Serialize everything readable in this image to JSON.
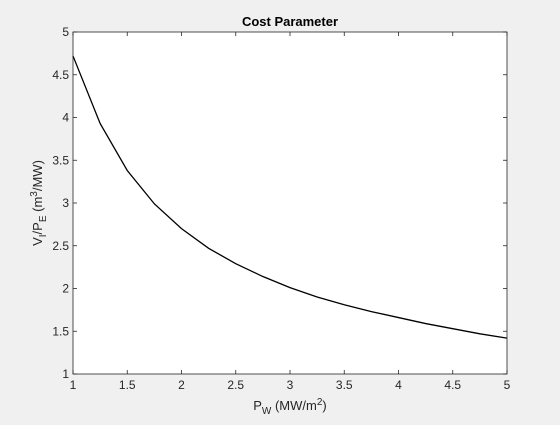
{
  "chart_data": {
    "type": "line",
    "title": "Cost Parameter",
    "xlabel": {
      "base": "P",
      "sub": "W",
      "rest": " (MW/m",
      "sup": "2",
      "end": ")"
    },
    "ylabel": {
      "base": "V",
      "sub1": "I",
      "mid": "/P",
      "sub2": "E",
      "rest": " (m",
      "sup": "3",
      "end": "/MW)"
    },
    "xlim": [
      1,
      5
    ],
    "ylim": [
      1,
      5
    ],
    "xticks": [
      1,
      1.5,
      2,
      2.5,
      3,
      3.5,
      4,
      4.5,
      5
    ],
    "yticks": [
      1,
      1.5,
      2,
      2.5,
      3,
      3.5,
      4,
      4.5,
      5
    ],
    "xtick_labels": [
      "1",
      "1.5",
      "2",
      "2.5",
      "3",
      "3.5",
      "4",
      "4.5",
      "5"
    ],
    "ytick_labels": [
      "1",
      "1.5",
      "2",
      "2.5",
      "3",
      "3.5",
      "4",
      "4.5",
      "5"
    ],
    "grid": false,
    "colors": {
      "figure_background": "#f0f0f0",
      "axes_background": "#ffffff",
      "line": "#000000",
      "axis": "#262626"
    },
    "series": [
      {
        "x": [
          1.0,
          1.25,
          1.5,
          1.75,
          2.0,
          2.25,
          2.5,
          2.75,
          3.0,
          3.25,
          3.5,
          3.75,
          4.0,
          4.25,
          4.5,
          4.75,
          5.0
        ],
        "values": [
          4.72,
          3.93,
          3.38,
          2.99,
          2.7,
          2.47,
          2.29,
          2.14,
          2.01,
          1.9,
          1.81,
          1.73,
          1.66,
          1.59,
          1.53,
          1.47,
          1.42
        ]
      }
    ]
  }
}
